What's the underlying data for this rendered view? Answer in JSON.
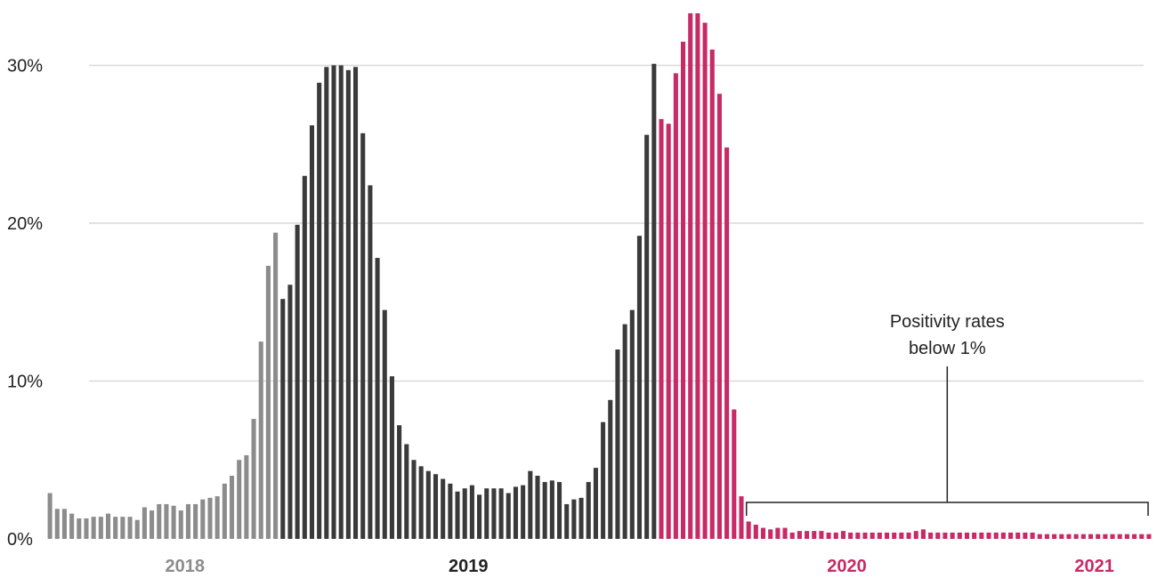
{
  "chart_data": {
    "type": "bar",
    "ylim": [
      0,
      35
    ],
    "y_ticks": [
      "0%",
      "10%",
      "20%",
      "30%"
    ],
    "y_tick_values": [
      0,
      10,
      20,
      30
    ],
    "grid": true,
    "series": [
      {
        "label": "2018",
        "color": "#8c8c8c",
        "values": [
          2.9,
          1.9,
          1.9,
          1.6,
          1.3,
          1.3,
          1.4,
          1.4,
          1.6,
          1.4,
          1.4,
          1.4,
          1.2,
          2.0,
          1.8,
          2.2,
          2.2,
          2.1,
          1.8,
          2.2,
          2.2,
          2.5,
          2.6,
          2.7,
          3.5,
          4.0,
          5.0,
          5.3,
          7.6,
          12.5,
          17.3,
          19.4
        ]
      },
      {
        "label": "2019",
        "color": "#3a3a3a",
        "values": [
          15.2,
          16.1,
          19.9,
          23.0,
          26.2,
          28.9,
          29.9,
          30.0,
          30.0,
          29.7,
          29.9,
          25.7,
          22.4,
          17.8,
          14.5,
          10.3,
          7.2,
          6.0,
          5.0,
          4.6,
          4.3,
          4.1,
          3.8,
          3.5,
          3.0,
          3.2,
          3.4,
          2.8,
          3.2,
          3.2,
          3.2,
          2.9,
          3.3,
          3.4,
          4.3,
          4.0,
          3.6,
          3.7,
          3.6,
          2.2,
          2.5,
          2.6,
          3.6,
          4.5,
          7.4,
          8.8,
          12.0,
          13.6,
          14.5,
          19.2,
          25.6,
          30.1
        ]
      },
      {
        "label": "2020",
        "color": "#c72a65",
        "values": [
          26.6,
          26.3,
          29.5,
          31.5,
          33.3,
          33.3,
          32.7,
          31.0,
          28.2,
          24.8,
          8.2,
          2.7,
          1.1,
          0.9,
          0.7,
          0.6,
          0.7,
          0.7,
          0.4,
          0.5,
          0.5,
          0.5,
          0.5,
          0.4,
          0.4,
          0.5,
          0.4,
          0.4,
          0.4,
          0.4,
          0.4,
          0.4,
          0.4,
          0.4,
          0.4,
          0.5,
          0.6,
          0.4,
          0.4,
          0.4,
          0.4,
          0.4,
          0.4,
          0.4,
          0.4,
          0.4,
          0.4,
          0.4,
          0.4,
          0.4,
          0.4,
          0.4
        ]
      },
      {
        "label": "2021",
        "color": "#c72a65",
        "values": [
          0.3,
          0.3,
          0.3,
          0.3,
          0.3,
          0.3,
          0.3,
          0.3,
          0.3,
          0.3,
          0.3,
          0.3,
          0.3,
          0.3,
          0.3,
          0.3
        ]
      }
    ],
    "annotation": {
      "line1": "Positivity rates",
      "line2": "below 1%"
    }
  }
}
